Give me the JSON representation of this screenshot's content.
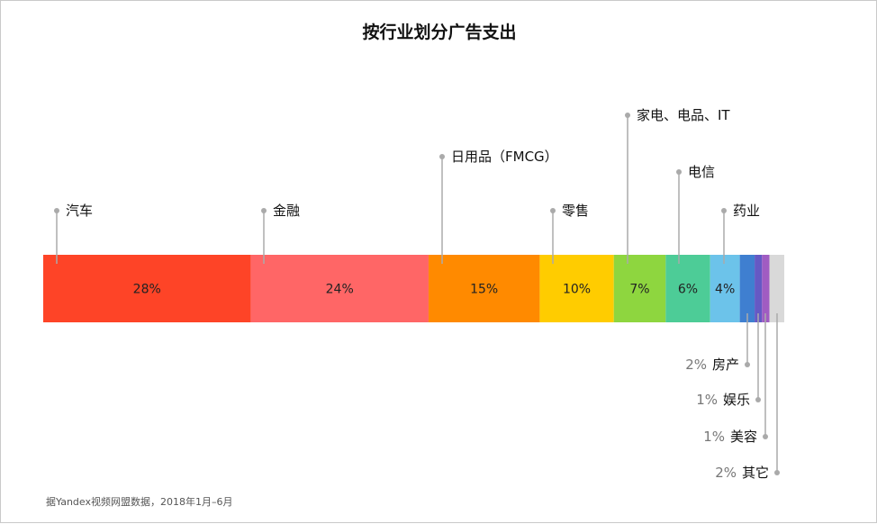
{
  "chart_data": {
    "type": "bar",
    "title": "按行业划分广告支出",
    "note": "据Yandex视频网盟数据，2018年1月–6月",
    "segments": [
      {
        "category": "汽车",
        "value": 28,
        "label": "28%",
        "color": "#fe4427"
      },
      {
        "category": "金融",
        "value": 24,
        "label": "24%",
        "color": "#ff6666"
      },
      {
        "category": "日用品（FMCG）",
        "value": 15,
        "label": "15%",
        "color": "#ff8a00"
      },
      {
        "category": "零售",
        "value": 10,
        "label": "10%",
        "color": "#ffcc00"
      },
      {
        "category": "家电、电品、IT",
        "value": 7,
        "label": "7%",
        "color": "#8ed63f"
      },
      {
        "category": "电信",
        "value": 6,
        "label": "6%",
        "color": "#4dcc97"
      },
      {
        "category": "药业",
        "value": 4,
        "label": "4%",
        "color": "#6cc3ea"
      },
      {
        "category": "房产",
        "value": 2,
        "label": "2%",
        "color": "#3f7fd0"
      },
      {
        "category": "娱乐",
        "value": 1,
        "label": "1%",
        "color": "#6559c4"
      },
      {
        "category": "美容",
        "value": 1,
        "label": "1%",
        "color": "#a05cc2"
      },
      {
        "category": "其它",
        "value": 2,
        "label": "2%",
        "color": "#d9d9d9"
      }
    ]
  }
}
